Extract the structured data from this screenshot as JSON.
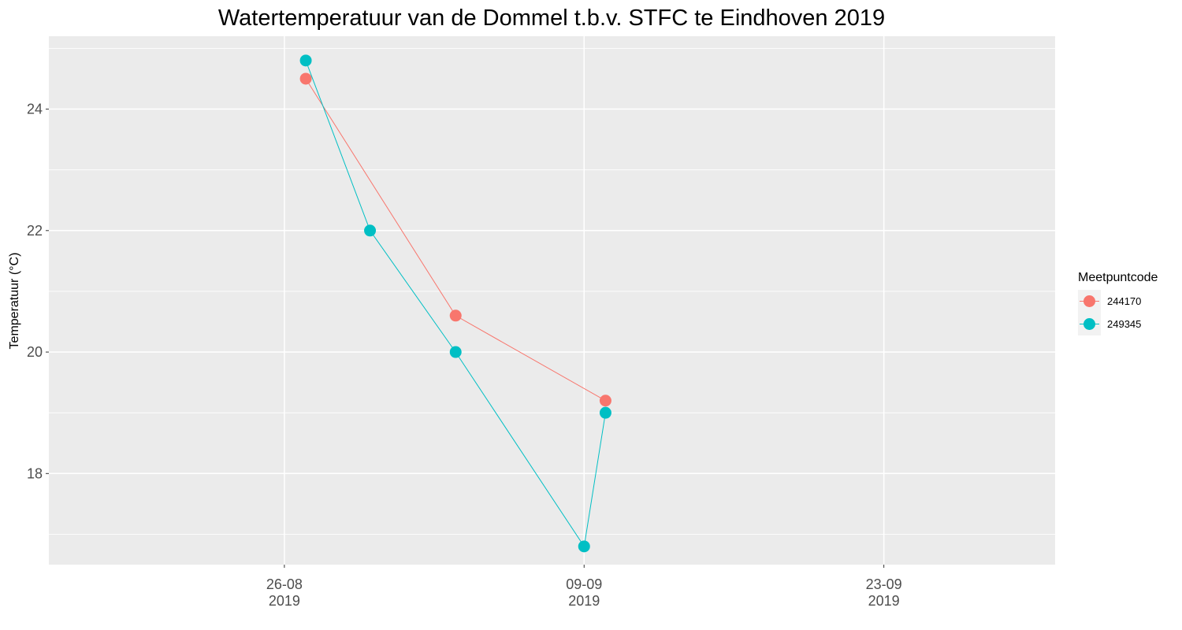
{
  "chart_data": {
    "type": "line",
    "title": "Watertemperatuur van de Dommel t.b.v. STFC te Eindhoven 2019",
    "xlabel": "",
    "ylabel": "Temperatuur (°C)",
    "x_ticks": [
      {
        "date": "2019-08-26",
        "label_day": "26-08",
        "label_year": "2019"
      },
      {
        "date": "2019-09-09",
        "label_day": "09-09",
        "label_year": "2019"
      },
      {
        "date": "2019-09-23",
        "label_day": "23-09",
        "label_year": "2019"
      }
    ],
    "y_ticks": [
      18,
      20,
      22,
      24
    ],
    "xlim": [
      "2019-08-15",
      "2019-10-01"
    ],
    "ylim": [
      16.5,
      25.2
    ],
    "grid": true,
    "legend": {
      "title": "Meetpuntcode",
      "position": "right"
    },
    "series": [
      {
        "name": "244170",
        "color": "#F8766D",
        "points": [
          {
            "x": "2019-08-27",
            "y": 24.5
          },
          {
            "x": "2019-09-03",
            "y": 20.6
          },
          {
            "x": "2019-09-10",
            "y": 19.2
          }
        ]
      },
      {
        "name": "249345",
        "color": "#00BFC4",
        "points": [
          {
            "x": "2019-08-27",
            "y": 24.8
          },
          {
            "x": "2019-08-30",
            "y": 22.0
          },
          {
            "x": "2019-09-03",
            "y": 20.0
          },
          {
            "x": "2019-09-09",
            "y": 16.8
          },
          {
            "x": "2019-09-10",
            "y": 19.0
          }
        ]
      }
    ]
  }
}
